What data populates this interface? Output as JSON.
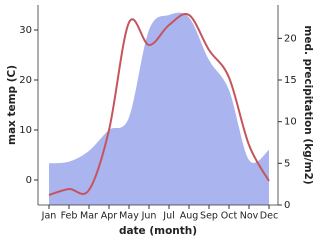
{
  "chart_data": {
    "type": "line",
    "xlabel": "date (month)",
    "ylabel": "max temp (C)",
    "y2label": "med. precipitation (kg/m2)",
    "categories": [
      "Jan",
      "Feb",
      "Mar",
      "Apr",
      "May",
      "Jun",
      "Jul",
      "Aug",
      "Sep",
      "Oct",
      "Nov",
      "Dec"
    ],
    "series": [
      {
        "name": "med. precipitation",
        "type": "area",
        "axis": "y2",
        "color": "#aab5f0",
        "values": [
          5,
          5.2,
          6.5,
          9,
          10.5,
          21,
          22.8,
          22.5,
          17.4,
          13.8,
          5.4,
          6.6
        ]
      },
      {
        "name": "max temp",
        "type": "line",
        "color": "#c5555d",
        "values": [
          -3,
          -1.8,
          -2,
          10,
          31.5,
          27,
          31,
          33,
          26,
          20.5,
          7,
          -0.2
        ]
      }
    ],
    "ylim": [
      -5,
      35
    ],
    "yticks": [
      0,
      10,
      20,
      30
    ],
    "y2lim": [
      0,
      24
    ],
    "y2ticks": [
      0,
      5,
      10,
      15,
      20
    ]
  }
}
